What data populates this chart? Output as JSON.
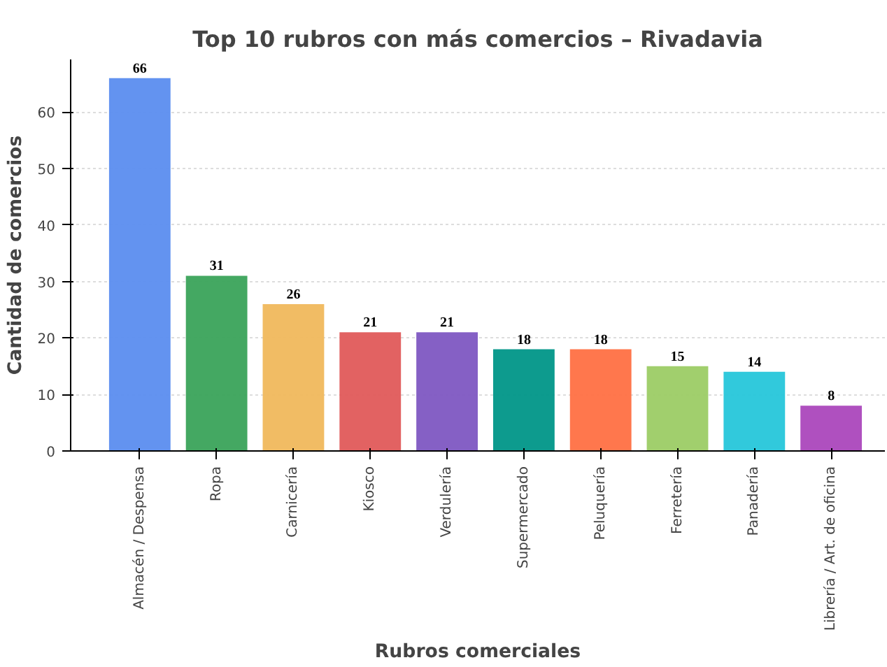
{
  "chart_data": {
    "type": "bar",
    "title": "Top 10 rubros con más comercios – Rivadavia",
    "xlabel": "Rubros comerciales",
    "ylabel": "Cantidad de comercios",
    "categories": [
      "Almacén / Despensa",
      "Ropa",
      "Carnicería",
      "Kiosco",
      "Verdulería",
      "Supermercado",
      "Peluquería",
      "Ferretería",
      "Panadería",
      "Librería / Art. de oficina"
    ],
    "values": [
      66,
      31,
      26,
      21,
      21,
      18,
      18,
      15,
      14,
      8
    ],
    "colors": [
      "#5b8def",
      "#3aa35a",
      "#f0b85c",
      "#e05a5a",
      "#7e57c2",
      "#009688",
      "#ff7043",
      "#9ccc65",
      "#26c6da",
      "#ab47bc"
    ],
    "ylim": [
      0,
      69.3
    ],
    "yticks": [
      0,
      10,
      20,
      30,
      40,
      50,
      60
    ],
    "grid": "y",
    "data_labels": true
  }
}
